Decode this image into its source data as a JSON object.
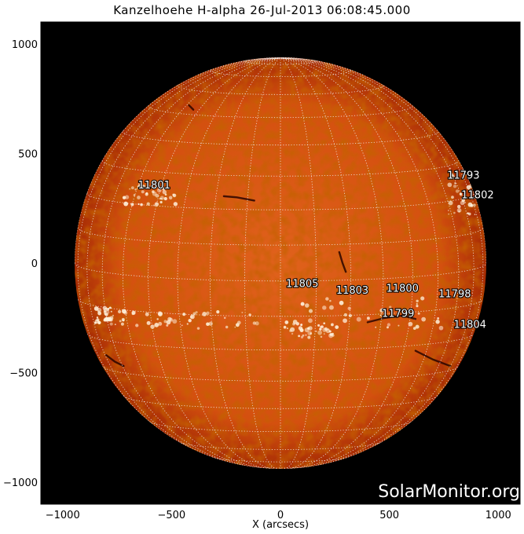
{
  "title": "Kanzelhoehe H-alpha 26-Jul-2013 06:08:45.000",
  "watermark": "SolarMonitor.org",
  "x_axis": {
    "label": "X (arcsecs)",
    "range": [
      -1100,
      1100
    ],
    "ticks": [
      -1000,
      -500,
      0,
      500,
      1000
    ],
    "tick_labels": [
      "−1000",
      "−500",
      "0",
      "500",
      "1000"
    ]
  },
  "y_axis": {
    "range": [
      -1100,
      1100
    ],
    "ticks": [
      1000,
      500,
      0,
      -500,
      -1000
    ],
    "tick_labels": [
      "1000",
      "500",
      "0",
      "−500",
      "−1000"
    ]
  },
  "solar_disk": {
    "radius_arcsec": 945,
    "center": [
      0,
      0
    ]
  },
  "colors": {
    "background": "#000000",
    "disk_center": "#e0621c",
    "disk_limb": "#a72c04",
    "grid": "#f2f2f2",
    "plage": "#fff2dc",
    "filament": "#2a0500"
  },
  "active_regions": [
    {
      "id": "11801",
      "x": -580,
      "y": 340
    },
    {
      "id": "11793",
      "x": 840,
      "y": 385
    },
    {
      "id": "11802",
      "x": 905,
      "y": 295
    },
    {
      "id": "11805",
      "x": 100,
      "y": -110
    },
    {
      "id": "11803",
      "x": 330,
      "y": -140
    },
    {
      "id": "11800",
      "x": 560,
      "y": -130
    },
    {
      "id": "11798",
      "x": 800,
      "y": -155
    },
    {
      "id": "11799",
      "x": 540,
      "y": -245
    },
    {
      "id": "11804",
      "x": 870,
      "y": -295
    }
  ]
}
